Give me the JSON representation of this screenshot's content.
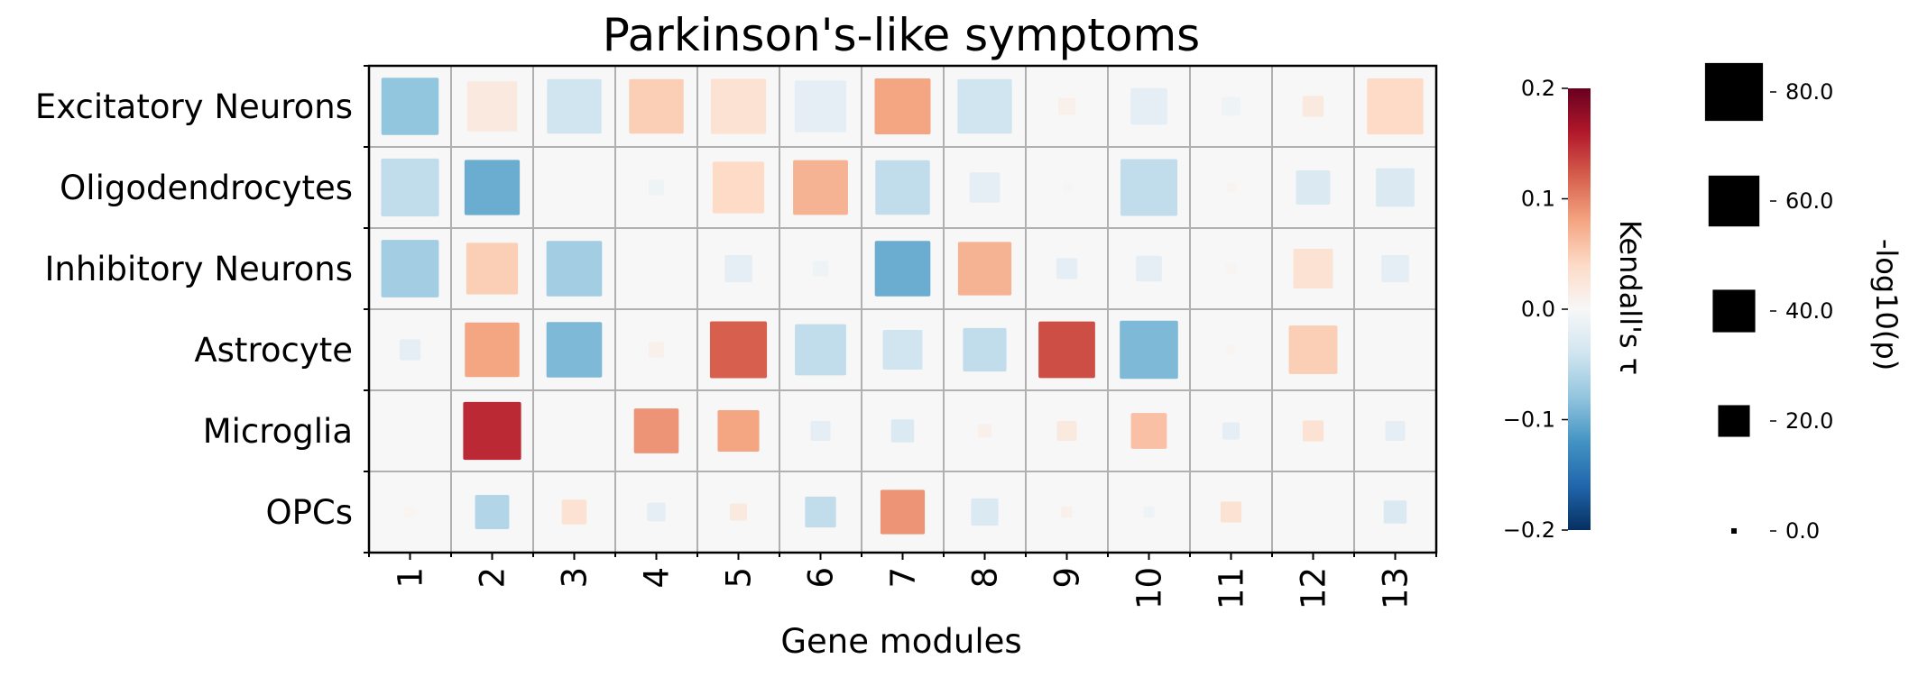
{
  "chart_data": {
    "type": "heatmap",
    "title": "Parkinson's-like symptoms",
    "xlabel": "Gene modules",
    "ylabel": "",
    "categories": [
      "1",
      "2",
      "3",
      "4",
      "5",
      "6",
      "7",
      "8",
      "9",
      "10",
      "11",
      "12",
      "13"
    ],
    "rows": [
      "Excitatory Neurons",
      "Oligodendrocytes",
      "Inhibitory Neurons",
      "Astrocyte",
      "Microglia",
      "OPCs"
    ],
    "grid": true,
    "tau": [
      [
        -0.08,
        0.02,
        -0.04,
        0.05,
        0.03,
        -0.02,
        0.08,
        -0.04,
        0.01,
        -0.02,
        -0.01,
        0.02,
        0.04
      ],
      [
        -0.05,
        -0.1,
        0.0,
        -0.01,
        0.04,
        0.07,
        -0.05,
        -0.02,
        0.005,
        -0.05,
        0.005,
        -0.03,
        -0.03
      ],
      [
        -0.07,
        0.05,
        -0.07,
        0.0,
        -0.02,
        -0.01,
        -0.1,
        0.07,
        -0.02,
        -0.02,
        0.005,
        0.03,
        -0.02
      ],
      [
        -0.02,
        0.08,
        -0.09,
        0.01,
        0.12,
        -0.05,
        -0.04,
        -0.05,
        0.13,
        -0.09,
        0.005,
        0.05,
        0.0
      ],
      [
        0.0,
        0.15,
        0.0,
        0.09,
        0.08,
        -0.02,
        -0.03,
        0.01,
        0.02,
        0.06,
        -0.02,
        0.03,
        -0.02
      ],
      [
        0.005,
        -0.06,
        0.03,
        -0.02,
        0.02,
        -0.05,
        0.09,
        -0.03,
        0.01,
        -0.01,
        0.03,
        0.0,
        -0.03
      ]
    ],
    "neg_log10_p": [
      [
        78,
        58,
        70,
        70,
        72,
        62,
        74,
        70,
        4,
        28,
        5,
        7,
        75
      ],
      [
        80,
        72,
        0,
        3,
        62,
        71,
        70,
        18,
        0.5,
        77,
        0.5,
        24,
        32
      ],
      [
        79,
        62,
        73,
        0.1,
        14,
        3,
        73,
        67,
        7,
        12,
        1,
        34,
        14
      ],
      [
        7,
        70,
        73,
        3,
        77,
        61,
        34,
        42,
        76,
        81,
        0.5,
        54,
        0
      ],
      [
        0,
        80,
        0,
        45,
        38,
        6,
        9,
        2,
        6,
        27,
        4,
        7,
        6
      ],
      [
        1,
        24,
        11,
        5,
        4,
        19,
        44,
        14,
        1,
        1,
        7,
        0,
        9
      ]
    ],
    "colorbar": {
      "label": "Kendall's τ",
      "range": [
        -0.2,
        0.2
      ],
      "ticks": [
        "0.2",
        "0.1",
        "0.0",
        "−0.1",
        "−0.2"
      ],
      "tick_values": [
        0.2,
        0.1,
        0.0,
        -0.1,
        -0.2
      ],
      "colormap": "RdBu_r",
      "stops": [
        "#053061",
        "#2166ac",
        "#4393c3",
        "#92c5de",
        "#d1e5f0",
        "#f7f7f7",
        "#fddbc7",
        "#f4a582",
        "#d6604d",
        "#b2182b",
        "#67001f"
      ]
    },
    "size_legend": {
      "label": "-log10(p)",
      "entries": [
        "80.0",
        "60.0",
        "40.0",
        "20.0",
        "0.0"
      ],
      "entry_values": [
        80,
        60,
        40,
        20,
        0
      ],
      "marker_color": "#000000"
    },
    "cell_background": "#f7f7f7",
    "grid_color": "#b0b0b0"
  }
}
